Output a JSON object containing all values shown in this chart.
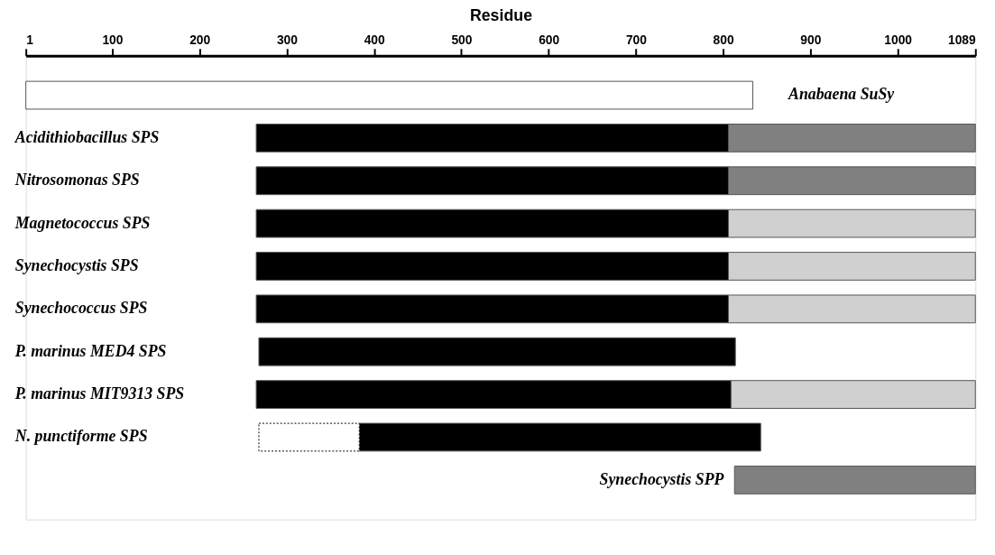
{
  "chart_data": {
    "type": "bar",
    "orientation": "horizontal",
    "xlabel": "Residue",
    "categories": [
      "Anabaena SuSy",
      "Acidithiobacillus SPS",
      "Nitrosomonas SPS",
      "Magnetococcus SPS",
      "Synechocystis SPS",
      "Synechococcus SPS",
      "P. marinus MED4 SPS",
      "P. marinus MIT9313 SPS",
      "N. punctiforme SPS",
      "Synechocystis SPP"
    ],
    "series": [
      {
        "color": "#ffffff",
        "base": [
          1,
          null,
          null,
          null,
          null,
          null,
          null,
          null,
          null,
          null
        ],
        "values": [
          833,
          null,
          null,
          null,
          null,
          null,
          null,
          null,
          null,
          null
        ]
      },
      {
        "color": "#000000",
        "base": [
          null,
          265,
          265,
          265,
          265,
          265,
          268,
          265,
          383,
          null
        ],
        "values": [
          null,
          541,
          541,
          541,
          541,
          541,
          546,
          544,
          460,
          null
        ]
      },
      {
        "color": "#808080",
        "base": [
          null,
          806,
          806,
          null,
          null,
          null,
          null,
          null,
          null,
          813
        ],
        "values": [
          null,
          283,
          283,
          null,
          null,
          null,
          null,
          null,
          null,
          276
        ]
      },
      {
        "color": "#d0d0d0",
        "base": [
          null,
          null,
          null,
          806,
          806,
          806,
          null,
          809,
          null,
          null
        ],
        "values": [
          null,
          null,
          null,
          283,
          283,
          283,
          null,
          280,
          null,
          null
        ]
      },
      {
        "color": "#ffffff",
        "line_style": "dotted",
        "base": [
          null,
          null,
          null,
          null,
          null,
          null,
          null,
          null,
          268,
          null
        ],
        "values": [
          null,
          null,
          null,
          null,
          null,
          null,
          null,
          null,
          115,
          null
        ]
      }
    ],
    "xlim": [
      1,
      1089
    ],
    "xticks": [
      1,
      100,
      200,
      300,
      400,
      500,
      600,
      700,
      800,
      900,
      1000,
      1089
    ],
    "grid": false
  }
}
